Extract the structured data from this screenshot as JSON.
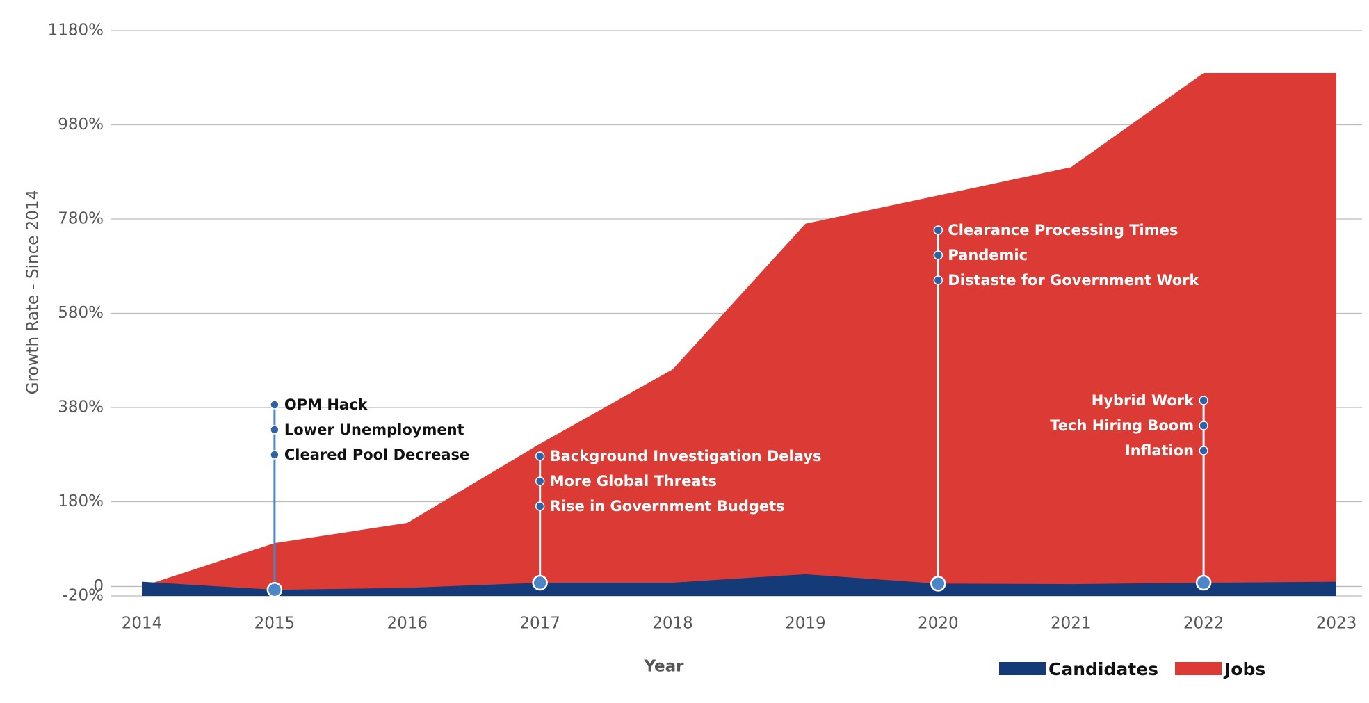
{
  "chart_data": {
    "type": "area",
    "y_label": "Growth Rate - Since 2014",
    "x_label": "Year",
    "categories": [
      "2014",
      "2015",
      "2016",
      "2017",
      "2018",
      "2019",
      "2020",
      "2021",
      "2022",
      "2023"
    ],
    "series": [
      {
        "name": "Candidates",
        "color": "#143a78",
        "values": [
          10,
          -7,
          -3,
          8,
          8,
          26,
          6,
          5,
          8,
          10
        ]
      },
      {
        "name": "Jobs",
        "color": "#dc3a35",
        "values": [
          0,
          92,
          135,
          303,
          461,
          770,
          830,
          890,
          1090,
          1090
        ]
      }
    ],
    "ylim": [
      -20,
      1180
    ],
    "yticks": [
      {
        "value": -20,
        "label": "-20%"
      },
      0,
      {
        "value": 180,
        "label": "180%"
      },
      {
        "value": 380,
        "label": "380%"
      },
      {
        "value": 580,
        "label": "580%"
      },
      {
        "value": 780,
        "label": "780%"
      },
      {
        "value": 980,
        "label": "980%"
      },
      {
        "value": 1180,
        "label": "1180%"
      }
    ],
    "grid": true,
    "legend": "bottom-right",
    "annotations": [
      {
        "x": "2015",
        "labels": [
          "OPM Hack",
          "Lower Unemployment",
          "Cleared Pool Decrease"
        ]
      },
      {
        "x": "2017",
        "labels": [
          "Background Investigation Delays",
          "More Global Threats",
          "Rise in Government Budgets"
        ]
      },
      {
        "x": "2020",
        "labels": [
          "Clearance Processing Times",
          "Pandemic",
          "Distaste for Government Work"
        ]
      },
      {
        "x": "2022",
        "labels": [
          "Hybrid Work",
          "Tech Hiring Boom",
          "Inflation"
        ]
      }
    ]
  }
}
